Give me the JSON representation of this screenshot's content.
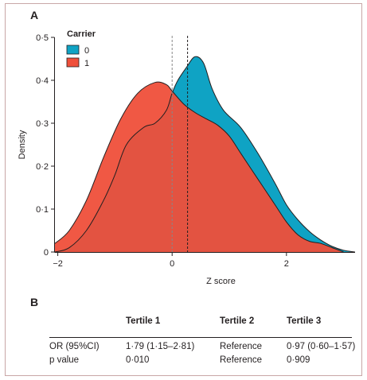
{
  "panel_a_label": "A",
  "panel_b_label": "B",
  "chart_data": {
    "type": "area",
    "xlabel": "Z score",
    "ylabel": "Density",
    "xlim": [
      -2.05,
      3.2
    ],
    "ylim": [
      0,
      0.5
    ],
    "x_ticks": [
      -2,
      0,
      2
    ],
    "y_ticks": [
      0,
      0.1,
      0.2,
      0.3,
      0.4,
      0.5
    ],
    "x_tick_labels": [
      "−2",
      "0",
      "2"
    ],
    "y_tick_labels": [
      "0",
      "0·1",
      "0·2",
      "0·3",
      "0·4",
      "0·5"
    ],
    "legend": {
      "title": "Carrier",
      "placement": "top-left"
    },
    "series": [
      {
        "name": "0",
        "color": "#0fa3c4",
        "x": [
          -2.05,
          -1.8,
          -1.5,
          -1.2,
          -1.0,
          -0.8,
          -0.5,
          -0.3,
          -0.1,
          0.0,
          0.1,
          0.25,
          0.4,
          0.55,
          0.7,
          0.9,
          1.2,
          1.5,
          1.8,
          2.0,
          2.2,
          2.4,
          2.6,
          2.8,
          3.0,
          3.2
        ],
        "values": [
          0.0,
          0.01,
          0.05,
          0.12,
          0.18,
          0.25,
          0.29,
          0.3,
          0.33,
          0.37,
          0.4,
          0.43,
          0.455,
          0.44,
          0.38,
          0.33,
          0.29,
          0.23,
          0.16,
          0.11,
          0.075,
          0.048,
          0.028,
          0.013,
          0.004,
          0.0
        ]
      },
      {
        "name": "1",
        "color": "#ef4f3a",
        "x": [
          -2.05,
          -1.8,
          -1.5,
          -1.2,
          -0.9,
          -0.6,
          -0.3,
          -0.1,
          0.0,
          0.2,
          0.4,
          0.6,
          0.8,
          1.0,
          1.2,
          1.5,
          1.8,
          2.0,
          2.2,
          2.4,
          2.6,
          2.8,
          3.0
        ],
        "values": [
          0.02,
          0.05,
          0.12,
          0.22,
          0.31,
          0.37,
          0.395,
          0.39,
          0.375,
          0.345,
          0.325,
          0.31,
          0.295,
          0.27,
          0.23,
          0.17,
          0.11,
          0.07,
          0.04,
          0.025,
          0.02,
          0.01,
          0.0
        ]
      }
    ],
    "reference_lines": [
      {
        "x": 0.0,
        "style": "dashed",
        "color": "#888888"
      },
      {
        "x": 0.27,
        "style": "dashed",
        "color": "#231f20"
      }
    ]
  },
  "table": {
    "headers": [
      "",
      "Tertile 1",
      "Tertile 2",
      "Tertile 3"
    ],
    "rows": [
      [
        "OR (95%CI)",
        "1·79 (1·15–2·81)",
        "Reference",
        "0·97 (0·60–1·57)"
      ],
      [
        "p value",
        "0·010",
        "Reference",
        "0·909"
      ]
    ]
  }
}
